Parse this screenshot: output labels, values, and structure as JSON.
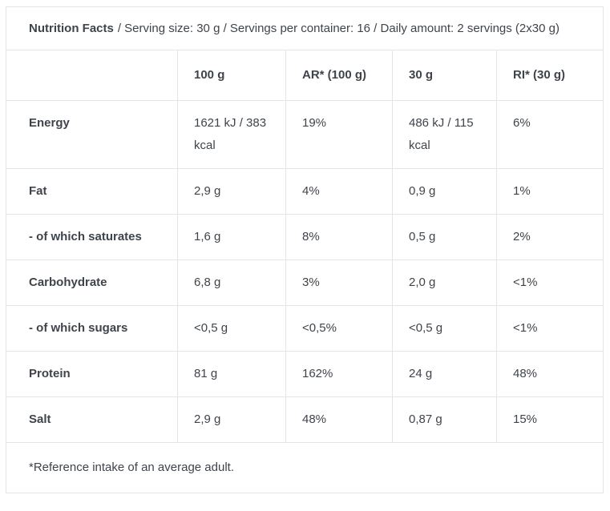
{
  "colors": {
    "text": "#3f444b",
    "border": "#e3e5e7",
    "background": "#ffffff"
  },
  "header": {
    "title": "Nutrition Facts",
    "details": "/ Serving size: 30 g / Servings per container: 16 / Daily amount: 2 servings (2x30 g)"
  },
  "table": {
    "column_headers": [
      "",
      "100 g",
      "AR* (100 g)",
      "30 g",
      "RI* (30 g)"
    ],
    "rows": [
      {
        "label": "Energy",
        "v100": "1621 kJ / 383 kcal",
        "ar": "19%",
        "v30": "486 kJ / 115 kcal",
        "ri": "6%"
      },
      {
        "label": "Fat",
        "v100": "2,9 g",
        "ar": "4%",
        "v30": "0,9 g",
        "ri": "1%"
      },
      {
        "label": "- of which saturates",
        "v100": "1,6 g",
        "ar": "8%",
        "v30": "0,5 g",
        "ri": "2%"
      },
      {
        "label": "Carbohydrate",
        "v100": "6,8 g",
        "ar": "3%",
        "v30": "2,0 g",
        "ri": "<1%"
      },
      {
        "label": "- of which sugars",
        "v100": "<0,5 g",
        "ar": "<0,5%",
        "v30": "<0,5 g",
        "ri": "<1%"
      },
      {
        "label": "Protein",
        "v100": "81 g",
        "ar": "162%",
        "v30": "24 g",
        "ri": "48%"
      },
      {
        "label": "Salt",
        "v100": "2,9 g",
        "ar": "48%",
        "v30": "0,87 g",
        "ri": "15%"
      }
    ]
  },
  "footnote": "*Reference intake of an average adult."
}
